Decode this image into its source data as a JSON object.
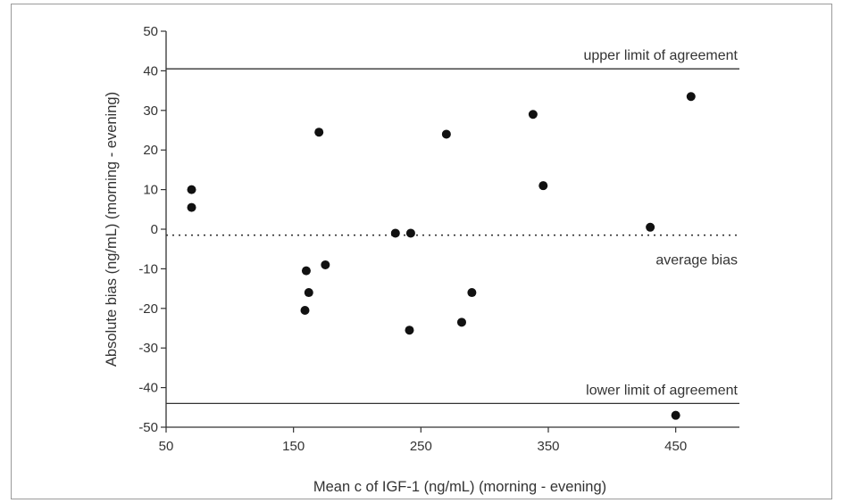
{
  "chart_data": {
    "type": "scatter",
    "xlabel": "Mean c of IGF-1 (ng/mL) (morning - evening)",
    "ylabel": "Absolute bias (ng/mL) (morning - evening)",
    "xlim": [
      50,
      500
    ],
    "ylim": [
      -50,
      50
    ],
    "x_ticks": [
      50,
      150,
      250,
      350,
      450
    ],
    "y_ticks": [
      50,
      40,
      30,
      20,
      10,
      0,
      -10,
      -20,
      -30,
      -40,
      -50
    ],
    "grid": false,
    "points": [
      {
        "x": 70,
        "y": 10
      },
      {
        "x": 70,
        "y": 5.5
      },
      {
        "x": 160,
        "y": -10.5
      },
      {
        "x": 162,
        "y": -16
      },
      {
        "x": 159,
        "y": -20.5
      },
      {
        "x": 170,
        "y": 24.5
      },
      {
        "x": 175,
        "y": -9
      },
      {
        "x": 230,
        "y": -1
      },
      {
        "x": 242,
        "y": -1
      },
      {
        "x": 241,
        "y": -25.5
      },
      {
        "x": 270,
        "y": 24
      },
      {
        "x": 282,
        "y": -23.5
      },
      {
        "x": 290,
        "y": -16
      },
      {
        "x": 338,
        "y": 29
      },
      {
        "x": 346,
        "y": 11
      },
      {
        "x": 430,
        "y": 0.5
      },
      {
        "x": 450,
        "y": -47
      },
      {
        "x": 462,
        "y": 33.5
      }
    ],
    "reference_lines": [
      {
        "label": "upper limit of agreement",
        "y": 40.5,
        "style": "solid"
      },
      {
        "label": "average bias",
        "y": -1.5,
        "style": "dotted"
      },
      {
        "label": "lower limit of agreement",
        "y": -44,
        "style": "solid"
      }
    ],
    "colors": {
      "points": "#111111",
      "lines": "#333333",
      "text": "#333333"
    }
  }
}
